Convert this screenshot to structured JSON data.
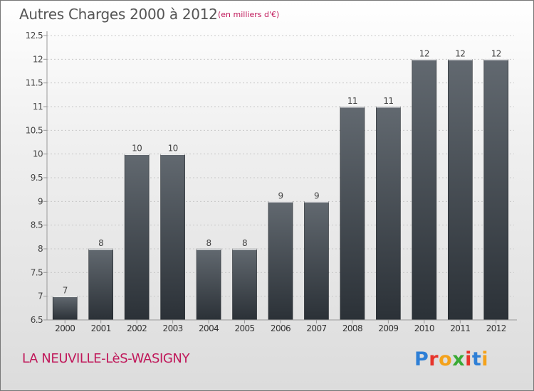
{
  "title": "Autres Charges 2000 à 2012",
  "subtitle": "(en milliers d'€)",
  "town": "LA NEUVILLE-LèS-WASIGNY",
  "logo": {
    "text": "Proxiti",
    "colors": [
      "#2e7fd6",
      "#e7342b",
      "#f4a21b",
      "#3aaa35",
      "#e7342b",
      "#2e7fd6",
      "#f4a21b"
    ]
  },
  "chart_data": {
    "type": "bar",
    "categories": [
      "2000",
      "2001",
      "2002",
      "2003",
      "2004",
      "2005",
      "2006",
      "2007",
      "2008",
      "2009",
      "2010",
      "2011",
      "2012"
    ],
    "values": [
      7,
      8,
      10,
      10,
      8,
      8,
      9,
      9,
      11,
      11,
      12,
      12,
      12
    ],
    "labels": [
      "7",
      "8",
      "10",
      "10",
      "8",
      "8",
      "9",
      "9",
      "11",
      "11",
      "12",
      "12",
      "12"
    ],
    "ylim": [
      6.5,
      12.5
    ],
    "yticks": [
      "6.5",
      "7",
      "7.5",
      "8",
      "8.5",
      "9",
      "9.5",
      "10",
      "10.5",
      "11",
      "11.5",
      "12",
      "12.5"
    ],
    "grid": true,
    "colors": {
      "bar_top": "#626970",
      "bar_bottom": "#2b3137"
    }
  }
}
